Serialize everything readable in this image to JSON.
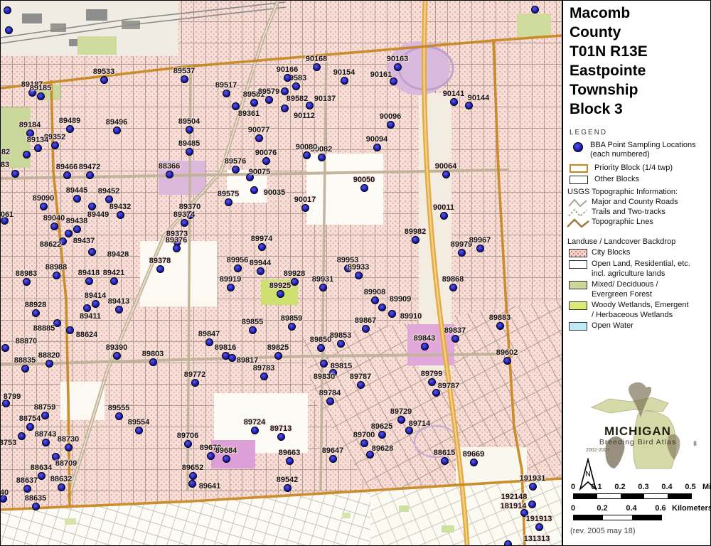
{
  "title": {
    "lines": [
      "Macomb",
      "County",
      "T01N R13E",
      "Eastpointe",
      "Township",
      "Block 3"
    ]
  },
  "legend": {
    "heading": "LEGEND",
    "bba_line1": "BBA Point Sampling Locations",
    "bba_line2": "(each numbered)",
    "priority": "Priority Block (1/4 twp)",
    "other": "Other Blocks",
    "usgs_heading": "USGS Topographic Information:",
    "roads": "Major and County Roads",
    "trails": "Trails and Two-tracks",
    "topo": "Topographic Lnes",
    "landuse_heading": "Landuse / Landcover Backdrop",
    "city": "City Blocks",
    "open_line1": "Open Land, Residential, etc.",
    "open_line2": "incl. agriculture lands",
    "mixed_line1": "Mixed/ Deciduous /",
    "mixed_line2": "Evergreen Forest",
    "woody_line1": "Woody Wetlands, Emergent",
    "woody_line2": "/ Herbaceous Wetlands",
    "water": "Open Water"
  },
  "logo": {
    "name": "MICHIGAN",
    "subtitle": "Breeding Bird Atlas",
    "number": "II",
    "years": "2002-2007"
  },
  "north_label": "N",
  "scale": {
    "miles": {
      "ticks": [
        "0",
        "0.1",
        "0.2",
        "0.3",
        "0.4",
        "0.5"
      ],
      "unit": "Miles"
    },
    "km": {
      "ticks": [
        "0",
        "0.2",
        "0.4",
        "0.6"
      ],
      "unit": "Kilometers"
    }
  },
  "rev_note": "(rev. 2005 may 18)",
  "colors": {
    "point_fill": "#1818aa",
    "priority_boundary": "#c8861d",
    "city_blocks": "#f6ded9",
    "forest": "#c9d89a",
    "wetland": "#dcea74",
    "water": "#bdeaf4",
    "expressway": "#e3aa3f"
  },
  "map": {
    "points": [
      [
        "",
        9,
        13
      ],
      [
        "",
        11,
        41
      ],
      [
        "",
        751,
        12
      ],
      [
        "89187",
        44,
        129
      ],
      [
        "89185",
        56,
        134
      ],
      [
        "89533",
        145,
        111
      ],
      [
        "89537",
        258,
        110
      ],
      [
        "89184",
        41,
        186
      ],
      [
        "89489",
        97,
        180
      ],
      [
        "89496",
        163,
        182
      ],
      [
        "89352",
        76,
        203
      ],
      [
        "89134",
        52,
        207
      ],
      [
        "82",
        36,
        216,
        7,
        213
      ],
      [
        "83",
        20,
        243,
        6,
        231
      ],
      [
        "89466",
        93,
        245
      ],
      [
        "89472",
        125,
        245
      ],
      [
        "88366",
        237,
        244
      ],
      [
        "89504",
        265,
        181
      ],
      [
        "89485",
        265,
        212
      ],
      [
        "89517",
        317,
        130
      ],
      [
        "89581",
        356,
        143
      ],
      [
        "89579",
        377,
        139
      ],
      [
        "89583",
        415,
        120
      ],
      [
        "90166",
        403,
        108
      ],
      [
        "90168",
        444,
        93
      ],
      [
        "90154",
        483,
        112
      ],
      [
        "90163",
        558,
        93
      ],
      [
        "90161",
        552,
        113,
        535,
        104
      ],
      [
        "90141",
        637,
        142
      ],
      [
        "90144",
        658,
        147,
        672,
        137
      ],
      [
        "89582",
        399,
        127,
        417,
        138
      ],
      [
        "90112",
        399,
        151,
        427,
        162
      ],
      [
        "90137",
        434,
        147,
        456,
        138
      ],
      [
        "89361",
        330,
        148,
        349,
        159
      ],
      [
        "90096",
        548,
        174
      ],
      [
        "90094",
        529,
        206
      ],
      [
        "90082",
        451,
        220
      ],
      [
        "90080",
        430,
        217
      ],
      [
        "90077",
        363,
        193
      ],
      [
        "90076",
        373,
        225
      ],
      [
        "89576",
        330,
        237
      ],
      [
        "90075",
        350,
        248,
        364,
        241
      ],
      [
        "90035",
        356,
        266,
        385,
        270
      ],
      [
        "89575",
        320,
        283
      ],
      [
        "90064",
        626,
        244
      ],
      [
        "90050",
        511,
        263
      ],
      [
        "90011",
        623,
        302
      ],
      [
        "90017",
        428,
        291
      ],
      [
        "061",
        5,
        309,
        9,
        301
      ],
      [
        "89090",
        60,
        289
      ],
      [
        "89040",
        75,
        317
      ],
      [
        "89445",
        107,
        278
      ],
      [
        "89452",
        152,
        279
      ],
      [
        "89432",
        168,
        301
      ],
      [
        "89449",
        128,
        289,
        137,
        301
      ],
      [
        "89438",
        107,
        321
      ],
      [
        "89437",
        95,
        327,
        117,
        338
      ],
      [
        "88622",
        87,
        338,
        70,
        343
      ],
      [
        "89428",
        128,
        353,
        165,
        357
      ],
      [
        "89370",
        266,
        301
      ],
      [
        "89374",
        258,
        312
      ],
      [
        "89373",
        248,
        339
      ],
      [
        "89376",
        247,
        348
      ],
      [
        "89378",
        224,
        377
      ],
      [
        "89982",
        583,
        336
      ],
      [
        "89979",
        648,
        354
      ],
      [
        "89967",
        674,
        348
      ],
      [
        "88983",
        36,
        395
      ],
      [
        "88988",
        78,
        386
      ],
      [
        "89418",
        124,
        394
      ],
      [
        "89421",
        159,
        394
      ],
      [
        "89919",
        323,
        403
      ],
      [
        "89925",
        393,
        412
      ],
      [
        "89928",
        413,
        395
      ],
      [
        "89931",
        453,
        403
      ],
      [
        "89956",
        333,
        376
      ],
      [
        "89944",
        365,
        380
      ],
      [
        "89974",
        367,
        346
      ],
      [
        "89953",
        488,
        376
      ],
      [
        "89933",
        503,
        386
      ],
      [
        "89868",
        636,
        403
      ],
      [
        "89414",
        133,
        426
      ],
      [
        "89413",
        166,
        434
      ],
      [
        "89411",
        121,
        432,
        126,
        444
      ],
      [
        "88928",
        49,
        439
      ],
      [
        "88885",
        79,
        453,
        61,
        461
      ],
      [
        "88624",
        97,
        463,
        121,
        470
      ],
      [
        "88870",
        6,
        488,
        36,
        479
      ],
      [
        "88835",
        34,
        517
      ],
      [
        "88820",
        68,
        510
      ],
      [
        "89390",
        163,
        499
      ],
      [
        "89803",
        214,
        508
      ],
      [
        "89908",
        526,
        421
      ],
      [
        "89909",
        536,
        431,
        562,
        420
      ],
      [
        "89910",
        550,
        440,
        577,
        444
      ],
      [
        "89855",
        354,
        463
      ],
      [
        "89859",
        409,
        458
      ],
      [
        "89867",
        513,
        461
      ],
      [
        "89847",
        293,
        480
      ],
      [
        "89850",
        450,
        488
      ],
      [
        "89853",
        478,
        482
      ],
      [
        "89816",
        316,
        499
      ],
      [
        "89817",
        325,
        502,
        347,
        506
      ],
      [
        "89825",
        390,
        499
      ],
      [
        "89815",
        454,
        510,
        479,
        514
      ],
      [
        "89830",
        467,
        523,
        455,
        529
      ],
      [
        "89783",
        370,
        528
      ],
      [
        "89772",
        273,
        537
      ],
      [
        "89787",
        506,
        540
      ],
      [
        "89784",
        463,
        563
      ],
      [
        "89883",
        702,
        457
      ],
      [
        "89837",
        639,
        475
      ],
      [
        "89843",
        596,
        486
      ],
      [
        "89602",
        712,
        506
      ],
      [
        "89799",
        606,
        536
      ],
      [
        "89787",
        612,
        551,
        630,
        542
      ],
      [
        "8799",
        7,
        566,
        16,
        557
      ],
      [
        "88759",
        62,
        583
      ],
      [
        "88754",
        41,
        599
      ],
      [
        "8753",
        29,
        612,
        10,
        622
      ],
      [
        "88743",
        63,
        621
      ],
      [
        "88730",
        95,
        628
      ],
      [
        "88709",
        77,
        641,
        92,
        651
      ],
      [
        "88634",
        57,
        668
      ],
      [
        "88637",
        37,
        686
      ],
      [
        "88632",
        85,
        684
      ],
      [
        "88635",
        49,
        711
      ],
      [
        "40",
        3,
        700,
        5,
        692
      ],
      [
        "89555",
        166,
        584
      ],
      [
        "89554",
        194,
        604
      ],
      [
        "89706",
        263,
        623
      ],
      [
        "89679",
        295,
        640
      ],
      [
        "89684",
        317,
        644
      ],
      [
        "89652",
        270,
        668
      ],
      [
        "89641",
        269,
        679,
        294,
        683
      ],
      [
        "89724",
        357,
        604
      ],
      [
        "89713",
        394,
        613
      ],
      [
        "89663",
        406,
        647
      ],
      [
        "89647",
        467,
        644
      ],
      [
        "89542",
        403,
        685
      ],
      [
        "89700",
        511,
        622
      ],
      [
        "89729",
        563,
        589
      ],
      [
        "89714",
        574,
        604,
        589,
        595
      ],
      [
        "89625",
        536,
        610
      ],
      [
        "89628",
        519,
        638,
        537,
        630
      ],
      [
        "88615",
        624,
        647
      ],
      [
        "89669",
        665,
        649
      ],
      [
        "191931",
        748,
        683
      ],
      [
        "192148",
        747,
        708,
        722,
        698
      ],
      [
        "181914",
        736,
        720,
        721,
        711
      ],
      [
        "191913",
        757,
        740
      ],
      [
        "131313",
        713,
        764,
        754,
        757
      ]
    ]
  }
}
